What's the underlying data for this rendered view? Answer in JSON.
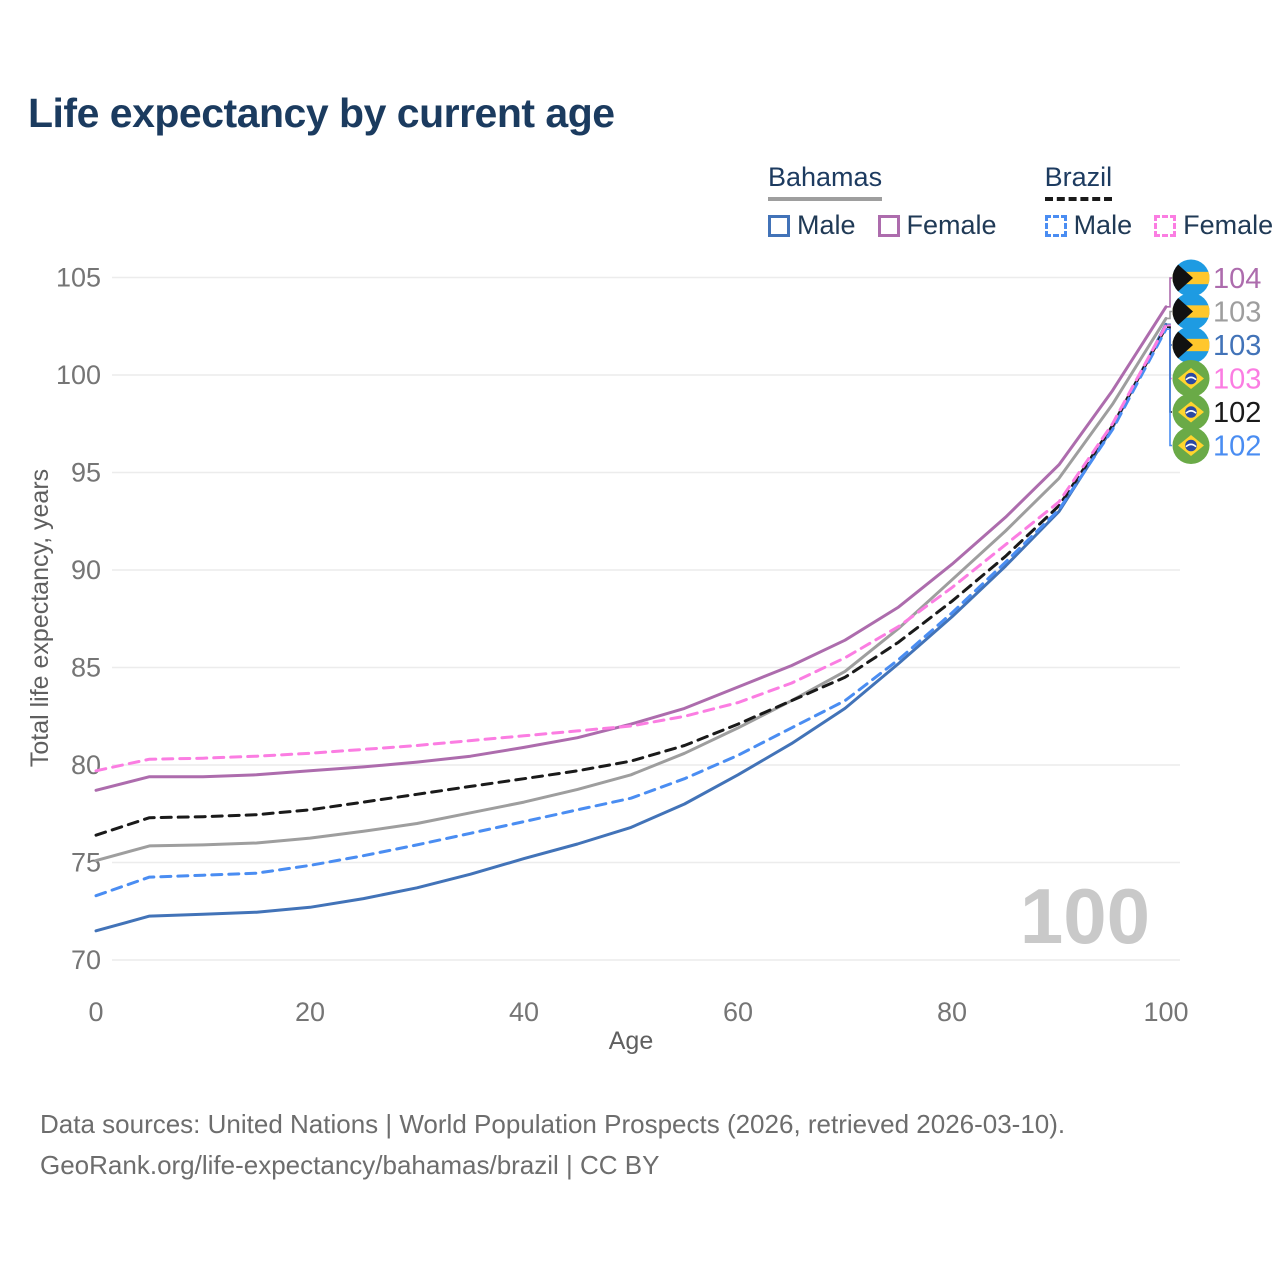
{
  "title": "Life expectancy by current age",
  "legend": {
    "groups": [
      {
        "label": "Bahamas",
        "line_style": "solid",
        "underline_color": "#9e9e9e",
        "items": [
          {
            "label": "Male",
            "color": "#4273b8",
            "dashed": false
          },
          {
            "label": "Female",
            "color": "#ad6cad",
            "dashed": false
          }
        ]
      },
      {
        "label": "Brazil",
        "line_style": "dashed",
        "underline_color": "#1a1a1a",
        "items": [
          {
            "label": "Male",
            "color": "#4a8df2",
            "dashed": true
          },
          {
            "label": "Female",
            "color": "#fb7de2",
            "dashed": true
          }
        ]
      }
    ]
  },
  "chart_data": {
    "type": "line",
    "title": "Life expectancy by current age",
    "xlabel": "Age",
    "ylabel": "Total life expectancy, years",
    "xlim": [
      0,
      100
    ],
    "ylim": [
      70,
      105
    ],
    "xticks": [
      0,
      20,
      40,
      60,
      80,
      100
    ],
    "yticks": [
      70,
      75,
      80,
      85,
      90,
      95,
      100,
      105
    ],
    "grid": "horizontal",
    "watermark_age": "100",
    "x": [
      0,
      5,
      10,
      15,
      20,
      25,
      30,
      35,
      40,
      45,
      50,
      55,
      60,
      65,
      70,
      75,
      80,
      85,
      90,
      95,
      100
    ],
    "series": [
      {
        "name": "Bahamas Female",
        "country": "bahamas",
        "sex": "female",
        "color": "#ad6cad",
        "dashed": false,
        "z": 1,
        "end_label": "104",
        "values": [
          78.7,
          79.4,
          79.4,
          79.5,
          79.7,
          79.9,
          80.15,
          80.45,
          80.9,
          81.4,
          82.1,
          82.9,
          84.0,
          85.1,
          86.4,
          88.1,
          90.3,
          92.7,
          95.4,
          99.2,
          103.5
        ]
      },
      {
        "name": "Bahamas Total",
        "country": "bahamas",
        "sex": "total",
        "color": "#9e9e9e",
        "dashed": false,
        "z": 0,
        "end_label": "103",
        "values": [
          75.1,
          75.85,
          75.9,
          76.0,
          76.25,
          76.6,
          77.0,
          77.55,
          78.1,
          78.75,
          79.5,
          80.6,
          81.9,
          83.3,
          84.8,
          87.0,
          89.5,
          92.0,
          94.7,
          98.5,
          102.9
        ]
      },
      {
        "name": "Bahamas Male",
        "country": "bahamas",
        "sex": "male",
        "color": "#4273b8",
        "dashed": false,
        "z": 2,
        "end_label": "103",
        "values": [
          71.5,
          72.25,
          72.35,
          72.45,
          72.7,
          73.15,
          73.7,
          74.4,
          75.2,
          75.95,
          76.8,
          78.0,
          79.5,
          81.1,
          82.9,
          85.2,
          87.6,
          90.2,
          93.0,
          97.3,
          102.6
        ]
      },
      {
        "name": "Brazil Female",
        "country": "brazil",
        "sex": "female",
        "color": "#fb7de2",
        "dashed": true,
        "z": 5,
        "end_label": "103",
        "values": [
          79.7,
          80.3,
          80.35,
          80.45,
          80.6,
          80.8,
          81.0,
          81.25,
          81.5,
          81.75,
          82.0,
          82.5,
          83.2,
          84.2,
          85.5,
          87.1,
          89.1,
          91.3,
          93.5,
          97.5,
          102.55
        ]
      },
      {
        "name": "Brazil Total",
        "country": "brazil",
        "sex": "total",
        "color": "#1a1a1a",
        "dashed": true,
        "z": 3,
        "end_label": "102",
        "values": [
          76.4,
          77.3,
          77.35,
          77.45,
          77.7,
          78.1,
          78.5,
          78.9,
          79.3,
          79.7,
          80.2,
          81.0,
          82.1,
          83.3,
          84.5,
          86.3,
          88.4,
          90.7,
          93.3,
          97.4,
          102.45
        ]
      },
      {
        "name": "Brazil Male",
        "country": "brazil",
        "sex": "male",
        "color": "#4a8df2",
        "dashed": true,
        "z": 4,
        "end_label": "102",
        "values": [
          73.3,
          74.25,
          74.35,
          74.45,
          74.85,
          75.35,
          75.9,
          76.5,
          77.1,
          77.7,
          78.3,
          79.3,
          80.5,
          81.9,
          83.3,
          85.4,
          87.8,
          90.4,
          93.1,
          97.2,
          102.35
        ]
      }
    ]
  },
  "colors": {
    "title": "#1b3b5f",
    "grid": "#ececec",
    "tick_label": "#757575",
    "axis_title": "#5f5f5f",
    "watermark": "#c9c9c9",
    "flag_bahamas_blue": "#1e9be2",
    "flag_bahamas_gold": "#ffc72c",
    "flag_bahamas_black": "#111111",
    "flag_brazil_green": "#6aaa47",
    "flag_brazil_yellow": "#ffd52e",
    "flag_brazil_blue": "#2b49a3"
  },
  "footer": {
    "line1": "Data sources: United Nations | World Population Prospects (2026, retrieved 2026-03-10).",
    "line2": "GeoRank.org/life-expectancy/bahamas/brazil | CC BY"
  }
}
